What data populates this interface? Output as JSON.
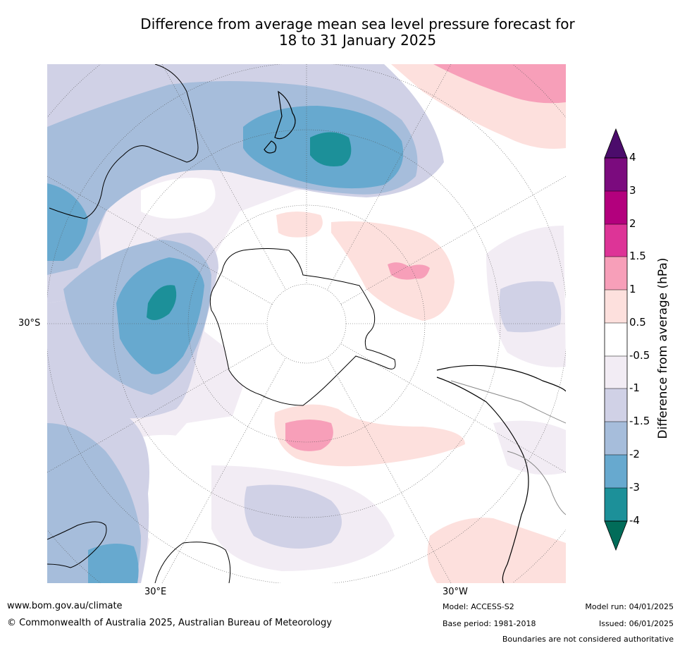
{
  "title": {
    "line1": "Difference from average mean sea level pressure forecast for",
    "line2": "18 to 31 January 2025"
  },
  "map": {
    "projection": "south-polar",
    "labels": {
      "lat_30s": "30°S",
      "lon_30e": "30°E",
      "lon_30w": "30°W"
    },
    "features": [
      {
        "name": "New Zealand",
        "anomaly_class": "-4 to -3"
      },
      {
        "name": "Antarctica",
        "anomaly_class": "masked"
      },
      {
        "name": "Southern Indian Ocean low",
        "anomaly_class": "-4 to -3"
      },
      {
        "name": "Southern Atlantic high",
        "anomaly_class": "1 to 1.5"
      },
      {
        "name": "Southern Pacific high",
        "anomaly_class": "1 to 1.5"
      }
    ]
  },
  "colorbar": {
    "title": "Difference from average (hPa)",
    "ticks": [
      "4",
      "3",
      "2",
      "1.5",
      "1",
      "0.5",
      "-0.5",
      "-1",
      "-1.5",
      "-2",
      "-3",
      "-4"
    ],
    "colors": {
      "gt4": "#4b0c6b",
      "3_4": "#7b0b7e",
      "2_3": "#b3007d",
      "1.5_2": "#dd3497",
      "1_1.5": "#f79fb9",
      "0.5_1": "#fde0dd",
      "neutral": "#ffffff",
      "m1_m0.5": "#f2ecf4",
      "m1.5_m1": "#d0d1e6",
      "m2_m1.5": "#a6bddb",
      "m3_m2": "#67a9cf",
      "m4_m3": "#1c9099",
      "lt_m4": "#016c59"
    }
  },
  "footer": {
    "website": "www.bom.gov.au/climate",
    "copyright": "© Commonwealth of Australia 2025, Australian Bureau of Meteorology",
    "model": "Model: ACCESS-S2",
    "base_period": "Base period: 1981-2018",
    "model_run": "Model run: 04/01/2025",
    "issued": "Issued: 06/01/2025",
    "disclaimer": "Boundaries are not considered authoritative"
  }
}
